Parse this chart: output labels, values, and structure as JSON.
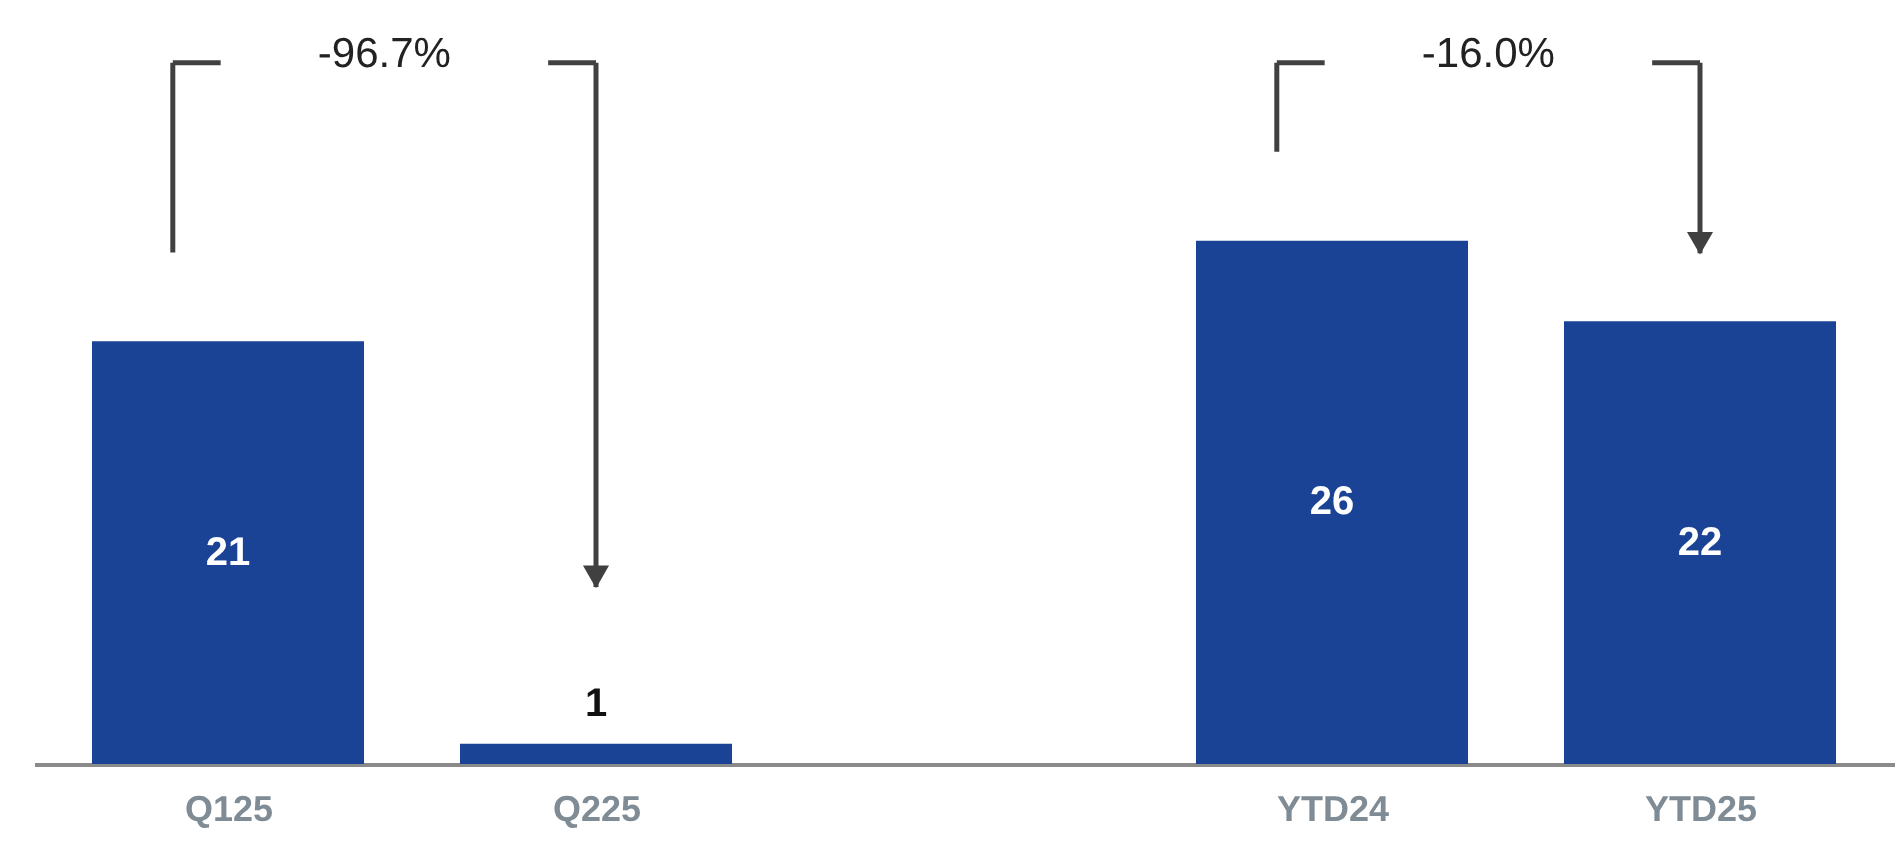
{
  "chart_data": {
    "type": "bar",
    "categories": [
      "Q125",
      "Q225",
      null,
      "YTD24",
      "YTD25"
    ],
    "values": [
      21,
      1,
      null,
      26,
      22
    ],
    "color": "#1a4396",
    "data_labels": true,
    "annotations": [
      "-96.7%",
      "-16.0%"
    ]
  }
}
